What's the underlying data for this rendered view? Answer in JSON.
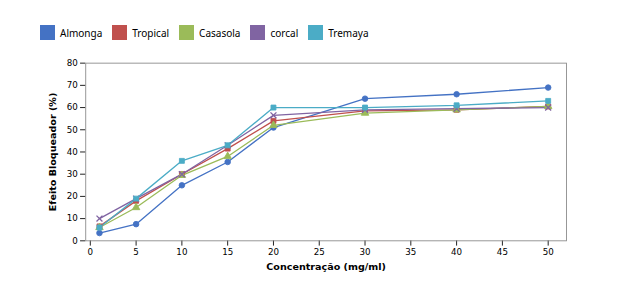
{
  "chart_data": {
    "type": "line",
    "x": [
      1,
      5,
      10,
      15,
      20,
      30,
      40,
      50
    ],
    "series": [
      {
        "name": "Almonga",
        "color": "#4472C4",
        "marker": "circle",
        "values": [
          3.5,
          7.5,
          25,
          35.5,
          51,
          64,
          66,
          69
        ]
      },
      {
        "name": "Tropical",
        "color": "#C0504D",
        "marker": "square",
        "values": [
          6.5,
          18,
          30,
          41.5,
          54,
          58.5,
          59,
          60.5
        ]
      },
      {
        "name": "Casasola",
        "color": "#9BBB59",
        "marker": "triangle",
        "values": [
          6.0,
          15,
          29.5,
          38,
          52,
          57.5,
          59,
          60.5
        ]
      },
      {
        "name": "corcal",
        "color": "#8064A2",
        "marker": "x",
        "values": [
          10,
          19,
          30,
          43,
          56.5,
          59,
          59.5,
          60
        ]
      },
      {
        "name": "Tremaya",
        "color": "#4BACC6",
        "marker": "square",
        "values": [
          6,
          19,
          36,
          43,
          60,
          60,
          61,
          63
        ]
      }
    ],
    "xlabel": "Concentração (mg/ml)",
    "ylabel": "Efeito Bloqueador (%)",
    "xlim": [
      -0.5,
      52
    ],
    "ylim": [
      0,
      80
    ],
    "xticks": [
      0,
      5,
      10,
      15,
      20,
      25,
      30,
      35,
      40,
      45,
      50
    ],
    "yticks": [
      0,
      10,
      20,
      30,
      40,
      50,
      60,
      70,
      80
    ],
    "grid": false,
    "legend": "top"
  }
}
